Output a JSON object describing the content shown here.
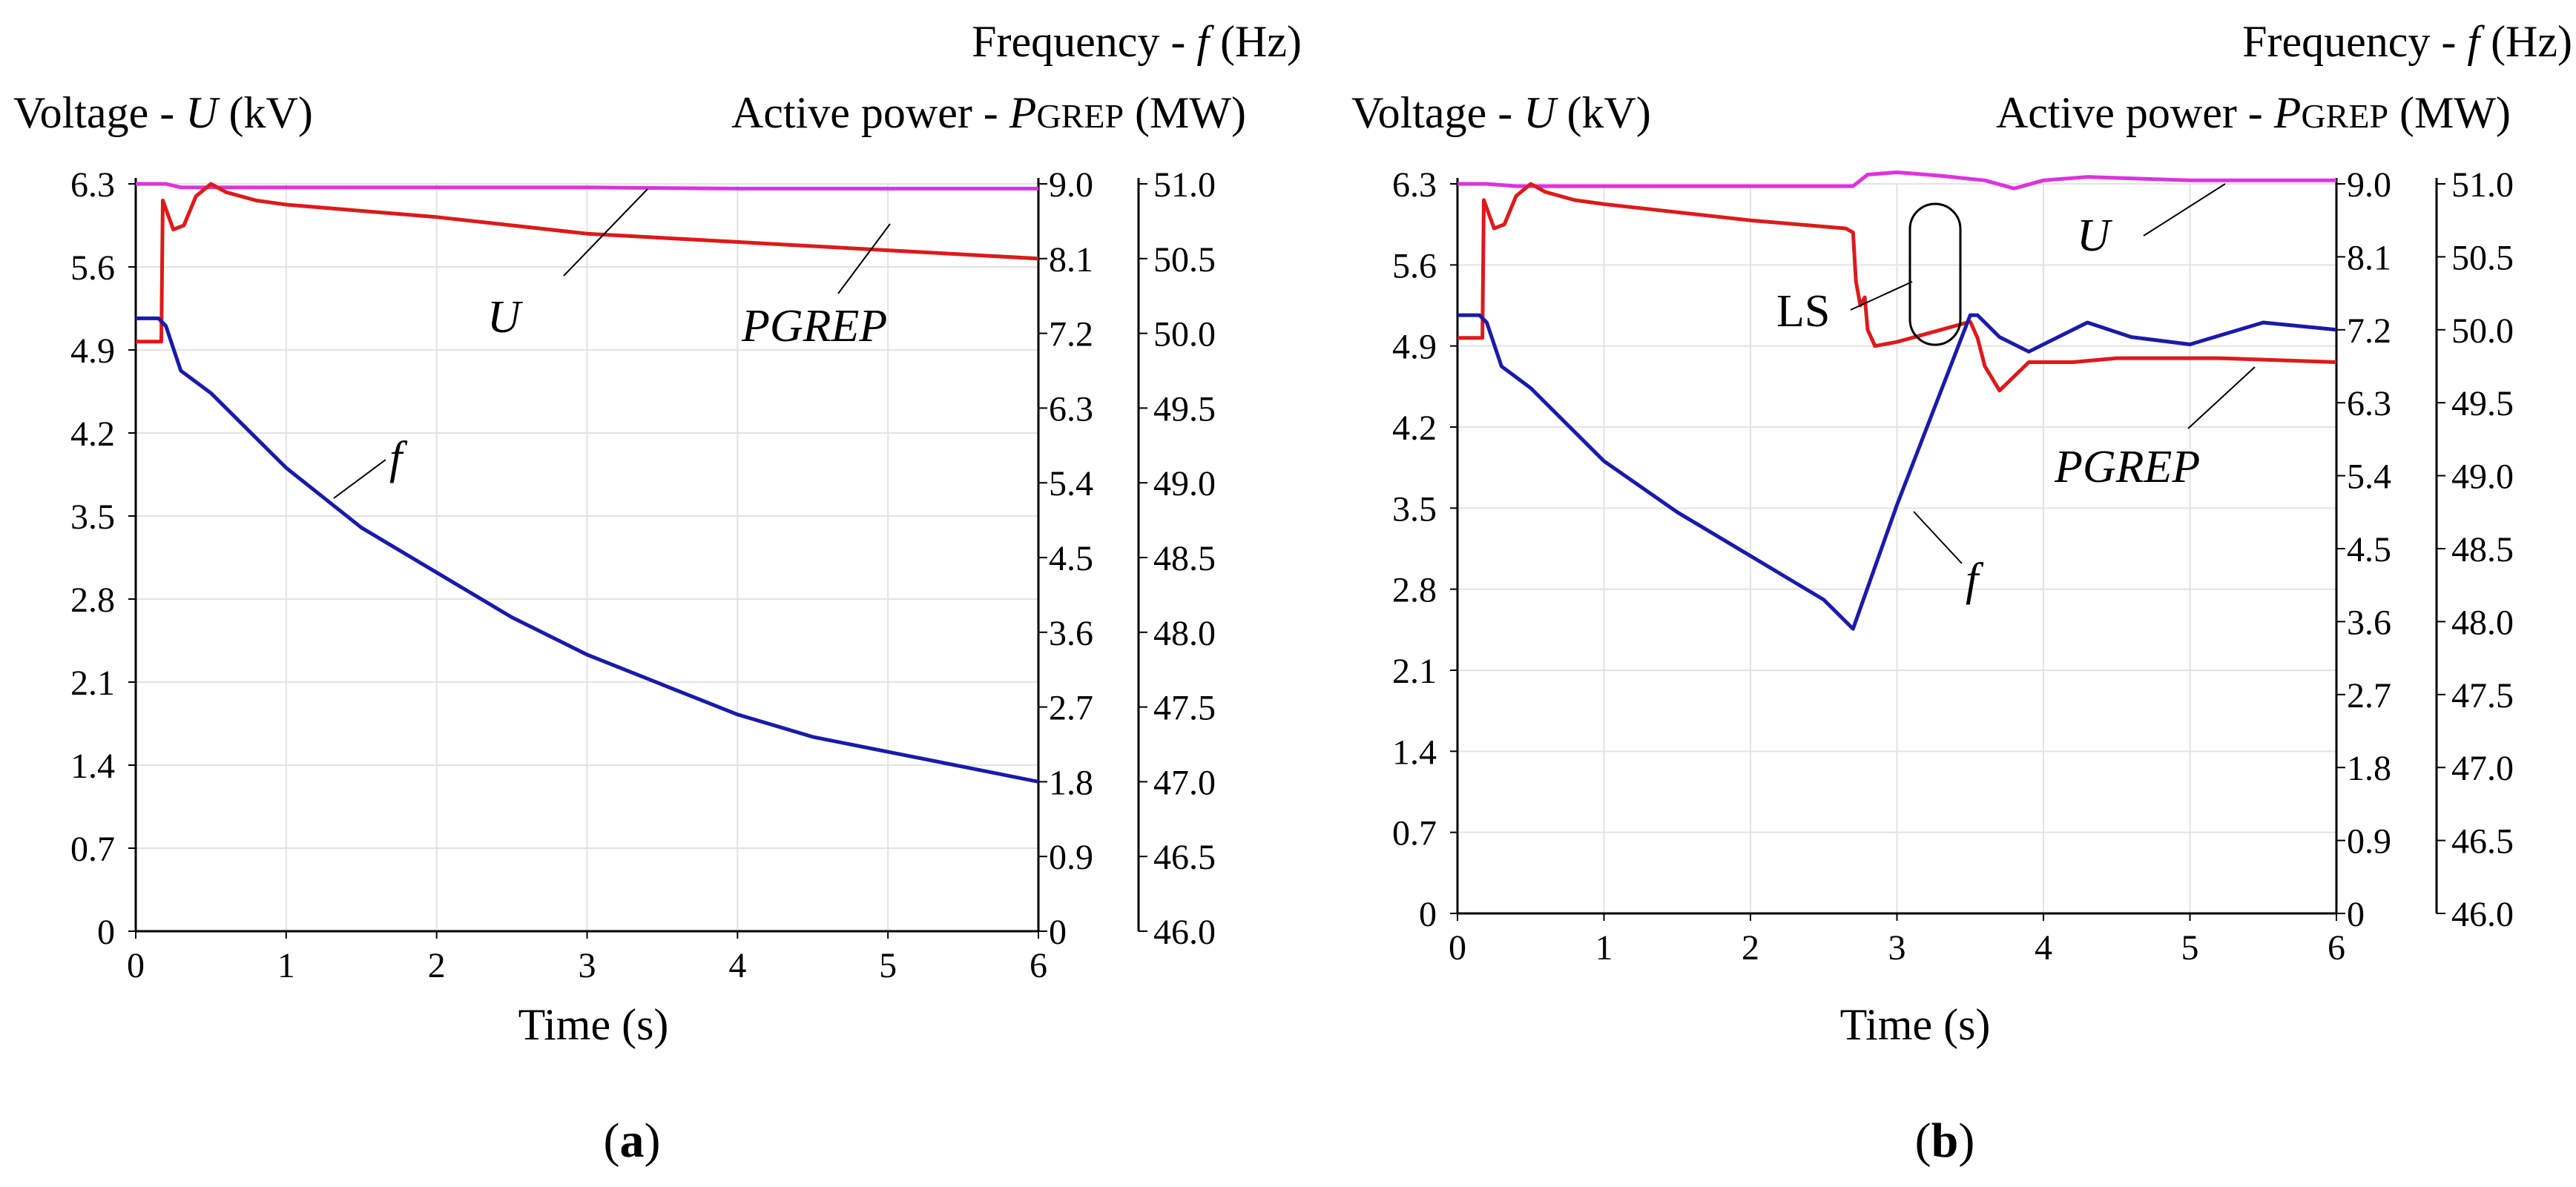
{
  "colors": {
    "U": "#dd33dd",
    "P": "#dd1a1a",
    "f": "#1a1aaa",
    "axis": "#000000",
    "grid": "#e3e3e3"
  },
  "chart_data": [
    {
      "id": "a",
      "type": "line",
      "caption": "a",
      "title_freq": "Frequency - ",
      "title_freq_sym": "f",
      "title_freq_unit": " (Hz)",
      "title_volt": "Voltage - ",
      "title_volt_sym": "U",
      "title_volt_unit": " (kV)",
      "title_power": "Active power - ",
      "title_power_sym": "P",
      "title_power_sub": "GREP",
      "title_power_unit": " (MW)",
      "xlabel": "Time (s)",
      "xlim": [
        0,
        6
      ],
      "x_ticks": [
        "0",
        "1",
        "2",
        "3",
        "4",
        "5",
        "6"
      ],
      "voltage_ticks": [
        "0",
        "0.7",
        "1.4",
        "2.1",
        "2.8",
        "3.5",
        "4.2",
        "4.9",
        "5.6",
        "6.3"
      ],
      "power_ticks": [
        "0",
        "0.9",
        "1.8",
        "2.7",
        "3.6",
        "4.5",
        "5.4",
        "6.3",
        "7.2",
        "8.1",
        "9.0"
      ],
      "freq_ticks": [
        "46.0",
        "46.5",
        "47.0",
        "47.5",
        "48.0",
        "48.5",
        "49.0",
        "49.5",
        "50.0",
        "50.5",
        "51.0"
      ],
      "voltage_range_kV": [
        0,
        6.3
      ],
      "power_range_MW": [
        0,
        9.0
      ],
      "freq_range_Hz": [
        46.0,
        51.0
      ],
      "series": [
        {
          "name": "U",
          "unit": "kV",
          "x": [
            0,
            0.2,
            0.3,
            1,
            2,
            3,
            4,
            5,
            6
          ],
          "values": [
            6.3,
            6.3,
            6.27,
            6.27,
            6.27,
            6.27,
            6.26,
            6.26,
            6.26
          ]
        },
        {
          "name": "PGREP",
          "unit": "MW",
          "x": [
            0,
            0.17,
            0.18,
            0.25,
            0.32,
            0.4,
            0.5,
            0.6,
            0.8,
            1,
            2,
            3,
            4,
            5,
            6
          ],
          "values": [
            7.1,
            7.1,
            8.8,
            8.45,
            8.5,
            8.85,
            9.0,
            8.9,
            8.8,
            8.75,
            8.6,
            8.4,
            8.3,
            8.2,
            8.1
          ]
        },
        {
          "name": "f",
          "unit": "Hz",
          "x": [
            0,
            0.15,
            0.2,
            0.25,
            0.3,
            0.5,
            1,
            1.5,
            2,
            2.5,
            3,
            3.5,
            4,
            4.5,
            5,
            5.5,
            6
          ],
          "values": [
            50.1,
            50.1,
            50.05,
            49.9,
            49.75,
            49.6,
            49.1,
            48.7,
            48.4,
            48.1,
            47.85,
            47.65,
            47.45,
            47.3,
            47.2,
            47.1,
            47.0
          ]
        }
      ],
      "annotations": [
        "U",
        "PGREP",
        "f"
      ]
    },
    {
      "id": "b",
      "type": "line",
      "caption": "b",
      "title_freq": "Frequency - ",
      "title_freq_sym": "f",
      "title_freq_unit": " (Hz)",
      "title_volt": "Voltage - ",
      "title_volt_sym": "U",
      "title_volt_unit": " (kV)",
      "title_power": "Active power - ",
      "title_power_sym": "P",
      "title_power_sub": "GREP",
      "title_power_unit": " (MW)",
      "xlabel": "Time (s)",
      "xlim": [
        0,
        6
      ],
      "x_ticks": [
        "0",
        "1",
        "2",
        "3",
        "4",
        "5",
        "6"
      ],
      "voltage_ticks": [
        "0",
        "0.7",
        "1.4",
        "2.1",
        "2.8",
        "3.5",
        "4.2",
        "4.9",
        "5.6",
        "6.3"
      ],
      "power_ticks": [
        "0",
        "0.9",
        "1.8",
        "2.7",
        "3.6",
        "4.5",
        "5.4",
        "6.3",
        "7.2",
        "8.1",
        "9.0"
      ],
      "freq_ticks": [
        "46.0",
        "46.5",
        "47.0",
        "47.5",
        "48.0",
        "48.5",
        "49.0",
        "49.5",
        "50.0",
        "50.5",
        "51.0"
      ],
      "voltage_range_kV": [
        0,
        6.3
      ],
      "power_range_MW": [
        0,
        9.0
      ],
      "freq_range_Hz": [
        46.0,
        51.0
      ],
      "series": [
        {
          "name": "U",
          "unit": "kV",
          "x": [
            0,
            0.2,
            0.4,
            1,
            2,
            2.7,
            2.8,
            3.0,
            3.3,
            3.6,
            3.8,
            4.0,
            4.3,
            5,
            6
          ],
          "values": [
            6.3,
            6.3,
            6.28,
            6.28,
            6.28,
            6.28,
            6.38,
            6.4,
            6.37,
            6.33,
            6.26,
            6.33,
            6.36,
            6.33,
            6.33
          ]
        },
        {
          "name": "PGREP",
          "unit": "MW",
          "x": [
            0,
            0.17,
            0.18,
            0.25,
            0.32,
            0.4,
            0.5,
            0.6,
            0.8,
            1,
            2,
            2.65,
            2.7,
            2.72,
            2.75,
            2.78,
            2.8,
            2.85,
            3.0,
            3.3,
            3.5,
            3.55,
            3.6,
            3.7,
            3.9,
            4.2,
            4.5,
            4.8,
            5.2,
            6
          ],
          "values": [
            7.1,
            7.1,
            8.8,
            8.45,
            8.5,
            8.85,
            9.0,
            8.9,
            8.8,
            8.75,
            8.55,
            8.45,
            8.4,
            7.8,
            7.5,
            7.6,
            7.2,
            7.0,
            7.05,
            7.2,
            7.3,
            7.1,
            6.75,
            6.45,
            6.8,
            6.8,
            6.85,
            6.85,
            6.85,
            6.8
          ]
        },
        {
          "name": "f",
          "unit": "Hz",
          "x": [
            0,
            0.15,
            0.2,
            0.25,
            0.3,
            0.5,
            1,
            1.5,
            2,
            2.5,
            2.7,
            3.0,
            3.5,
            3.55,
            3.7,
            3.9,
            4.1,
            4.3,
            4.6,
            5,
            5.5,
            6
          ],
          "values": [
            50.1,
            50.1,
            50.05,
            49.9,
            49.75,
            49.6,
            49.1,
            48.75,
            48.45,
            48.15,
            47.95,
            48.8,
            50.1,
            50.1,
            49.95,
            49.85,
            49.95,
            50.05,
            49.95,
            49.9,
            50.05,
            50.0
          ]
        }
      ],
      "annotations": [
        "U",
        "PGREP",
        "f",
        "LS"
      ]
    }
  ]
}
